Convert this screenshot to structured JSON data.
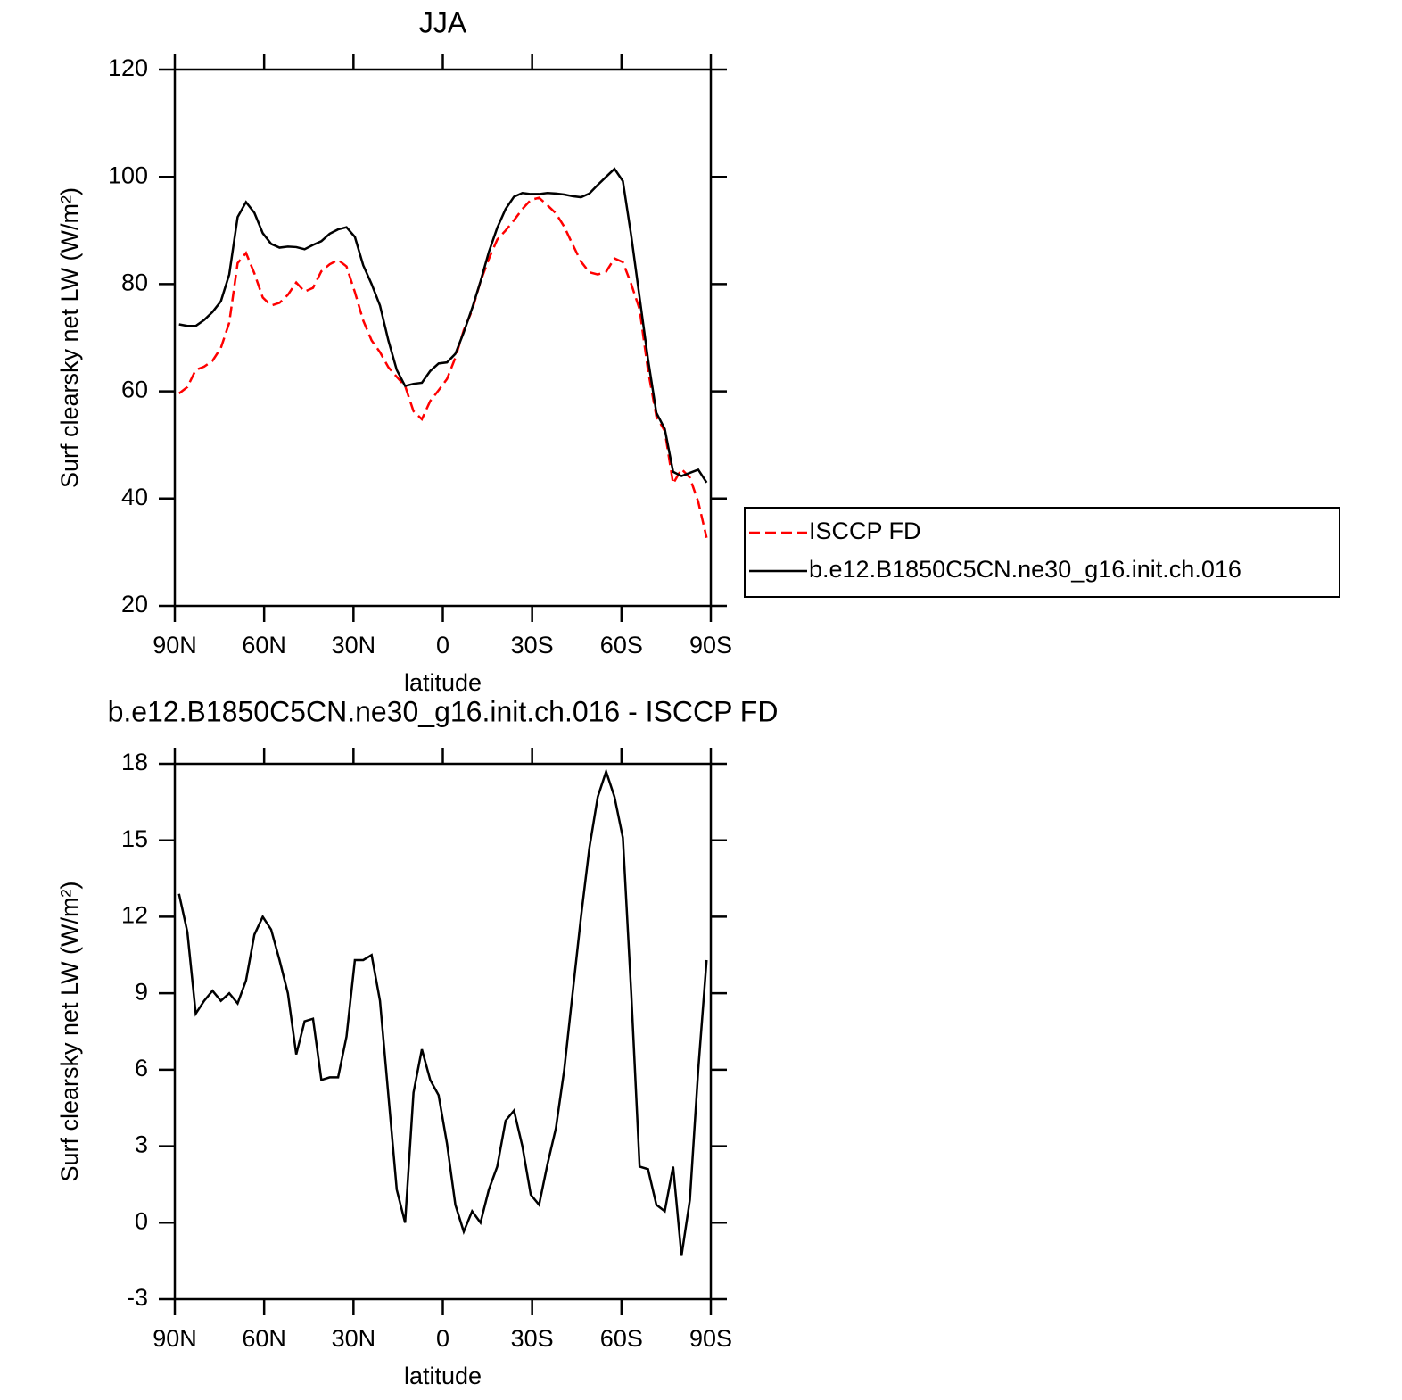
{
  "chart_data": [
    {
      "type": "line",
      "title": "JJA",
      "xlabel": "latitude",
      "ylabel": "Surf clearsky net LW (W/m²)",
      "x": [
        88.59,
        85.78,
        82.97,
        80.16,
        77.34,
        74.53,
        71.72,
        68.91,
        66.09,
        63.28,
        60.47,
        57.66,
        54.84,
        52.03,
        49.22,
        46.41,
        43.59,
        40.78,
        37.97,
        35.16,
        32.34,
        29.53,
        26.72,
        23.91,
        21.09,
        18.28,
        15.47,
        12.66,
        9.84,
        7.03,
        4.22,
        1.41,
        -1.41,
        -4.22,
        -7.03,
        -9.84,
        -12.66,
        -15.47,
        -18.28,
        -21.09,
        -23.91,
        -26.72,
        -29.53,
        -32.34,
        -35.16,
        -37.97,
        -40.78,
        -43.59,
        -46.41,
        -49.22,
        -52.03,
        -54.84,
        -57.66,
        -60.47,
        -63.28,
        -66.09,
        -68.91,
        -71.72,
        -74.53,
        -77.34,
        -80.16,
        -82.97,
        -85.78,
        -88.59
      ],
      "series": [
        {
          "name": "ISCCP FD",
          "color": "#ff0000",
          "style": "dashed",
          "values": [
            59.6,
            60.8,
            64.0,
            64.6,
            65.7,
            68.1,
            72.8,
            83.9,
            85.8,
            82.0,
            77.5,
            76.0,
            76.5,
            78.0,
            80.3,
            78.6,
            79.3,
            82.4,
            83.7,
            84.5,
            83.3,
            78.5,
            73.2,
            69.5,
            67.3,
            64.5,
            62.7,
            61.0,
            56.3,
            54.8,
            58.2,
            60.2,
            62.3,
            66.3,
            71.4,
            75.1,
            80.5,
            84.7,
            88.3,
            90.0,
            91.9,
            94.0,
            95.7,
            96.1,
            94.7,
            93.2,
            90.7,
            87.4,
            84.2,
            82.2,
            81.8,
            82.3,
            84.8,
            84.1,
            80.0,
            75.3,
            63.9,
            55.3,
            52.6,
            42.8,
            45.5,
            43.9,
            39.4,
            32.7
          ]
        },
        {
          "name": "b.e12.B1850C5CN.ne30_g16.init.ch.016",
          "color": "#000000",
          "style": "solid",
          "values": [
            72.5,
            72.2,
            72.2,
            73.3,
            74.8,
            76.8,
            81.8,
            92.5,
            95.3,
            93.3,
            89.5,
            87.5,
            86.8,
            87.0,
            86.9,
            86.5,
            87.3,
            88.0,
            89.4,
            90.2,
            90.6,
            88.8,
            83.5,
            80.0,
            76.0,
            69.5,
            64.0,
            61.0,
            61.4,
            61.6,
            63.8,
            65.2,
            65.4,
            67.0,
            71.0,
            75.5,
            80.5,
            86.0,
            90.5,
            94.0,
            96.3,
            97.0,
            96.8,
            96.8,
            97.0,
            96.9,
            96.7,
            96.4,
            96.2,
            96.9,
            98.5,
            100.0,
            101.5,
            99.2,
            89.0,
            77.5,
            66.0,
            56.0,
            53.0,
            45.0,
            44.2,
            44.8,
            45.4,
            43.0
          ]
        }
      ],
      "xlim": [
        90,
        -90
      ],
      "xticks": [
        {
          "value": 90,
          "label": "90N"
        },
        {
          "value": 60,
          "label": "60N"
        },
        {
          "value": 30,
          "label": "30N"
        },
        0,
        {
          "value": -30,
          "label": "30S"
        },
        {
          "value": -60,
          "label": "60S"
        },
        {
          "value": -90,
          "label": "90S"
        }
      ],
      "ylim": [
        20,
        120
      ],
      "yticks": [
        20,
        40,
        60,
        80,
        100,
        120
      ],
      "legend": "outside-right"
    },
    {
      "type": "line",
      "title": "b.e12.B1850C5CN.ne30_g16.init.ch.016 - ISCCP FD",
      "xlabel": "latitude",
      "ylabel": "Surf clearsky net LW (W/m²)",
      "x": [
        88.59,
        85.78,
        82.97,
        80.16,
        77.34,
        74.53,
        71.72,
        68.91,
        66.09,
        63.28,
        60.47,
        57.66,
        54.84,
        52.03,
        49.22,
        46.41,
        43.59,
        40.78,
        37.97,
        35.16,
        32.34,
        29.53,
        26.72,
        23.91,
        21.09,
        18.28,
        15.47,
        12.66,
        9.84,
        7.03,
        4.22,
        1.41,
        -1.41,
        -4.22,
        -7.03,
        -9.84,
        -12.66,
        -15.47,
        -18.28,
        -21.09,
        -23.91,
        -26.72,
        -29.53,
        -32.34,
        -35.16,
        -37.97,
        -40.78,
        -43.59,
        -46.41,
        -49.22,
        -52.03,
        -54.84,
        -57.66,
        -60.47,
        -63.28,
        -66.09,
        -68.91,
        -71.72,
        -74.53,
        -77.34,
        -80.16,
        -82.97,
        -85.78,
        -88.59
      ],
      "color": "#000000",
      "values": [
        12.9,
        11.4,
        8.2,
        8.7,
        9.1,
        8.7,
        9.0,
        8.6,
        9.5,
        11.3,
        12.0,
        11.5,
        10.3,
        9.0,
        6.6,
        7.9,
        8.0,
        5.6,
        5.7,
        5.7,
        7.3,
        10.3,
        10.3,
        10.5,
        8.7,
        5.0,
        1.3,
        0,
        5.1,
        6.8,
        5.6,
        5.0,
        3.1,
        0.7,
        -0.35,
        0.45,
        0.0,
        1.3,
        2.2,
        4.0,
        4.4,
        3.0,
        1.1,
        0.7,
        2.3,
        3.7,
        6.0,
        9.0,
        12.0,
        14.7,
        16.7,
        17.7,
        16.7,
        15.1,
        9.0,
        2.2,
        2.1,
        0.7,
        0.45,
        2.2,
        -1.3,
        0.9,
        6.0,
        10.3
      ],
      "xlim": [
        90,
        -90
      ],
      "xticks": [
        {
          "value": 90,
          "label": "90N"
        },
        {
          "value": 60,
          "label": "60N"
        },
        {
          "value": 30,
          "label": "30N"
        },
        0,
        {
          "value": -30,
          "label": "30S"
        },
        {
          "value": -60,
          "label": "60S"
        },
        {
          "value": -90,
          "label": "90S"
        }
      ],
      "ylim": [
        -3,
        18
      ],
      "yticks": [
        -3,
        0,
        3,
        6,
        9,
        12,
        15,
        18
      ]
    }
  ]
}
